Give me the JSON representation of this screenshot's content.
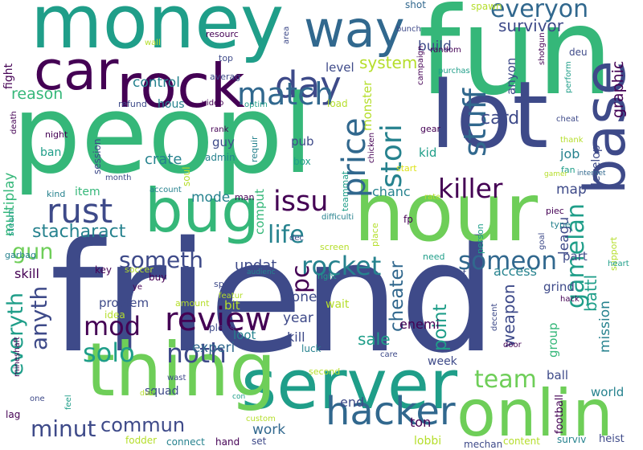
{
  "palette": {
    "dark_purple": "#440154",
    "indigo": "#3e4a89",
    "blue": "#31688e",
    "teal": "#26828e",
    "green_teal": "#1f9e89",
    "green": "#35b779",
    "light_green": "#6ece58",
    "lime": "#b5de2b",
    "yellow": "#dde318"
  },
  "words": [
    {
      "text": "friend",
      "color": "#3e4a89"
    },
    {
      "text": "peopl",
      "color": "#35b779"
    },
    {
      "text": "fun",
      "color": "#35b779"
    },
    {
      "text": "money",
      "color": "#1f9e89"
    },
    {
      "text": "server",
      "color": "#1f9e89"
    },
    {
      "text": "thing",
      "color": "#6ece58"
    },
    {
      "text": "lot",
      "color": "#3e4a89"
    },
    {
      "text": "hour",
      "color": "#6ece58"
    },
    {
      "text": "base",
      "color": "#3e4a89"
    },
    {
      "text": "onlin",
      "color": "#6ece58"
    },
    {
      "text": "bug",
      "color": "#35b779"
    },
    {
      "text": "car",
      "color": "#440154"
    },
    {
      "text": "rock",
      "color": "#440154"
    },
    {
      "text": "way",
      "color": "#31688e"
    },
    {
      "text": "day",
      "color": "#3e4a89"
    },
    {
      "text": "hacker",
      "color": "#31688e"
    },
    {
      "text": "everyon",
      "color": "#31688e"
    },
    {
      "text": "match",
      "color": "#31688e"
    },
    {
      "text": "stuff",
      "color": "#31688e"
    },
    {
      "text": "rust",
      "color": "#3e4a89"
    },
    {
      "text": "killer",
      "color": "#440154"
    },
    {
      "text": "stori",
      "color": "#26828e"
    },
    {
      "text": "price",
      "color": "#31688e"
    },
    {
      "text": "issu",
      "color": "#440154"
    },
    {
      "text": "gamelan",
      "color": "#1f9e89"
    },
    {
      "text": "review",
      "color": "#440154"
    },
    {
      "text": "someon",
      "color": "#31688e"
    },
    {
      "text": "rocket",
      "color": "#26828e"
    },
    {
      "text": "noth",
      "color": "#3e4a89"
    },
    {
      "text": "solo",
      "color": "#1f9e89"
    },
    {
      "text": "mod",
      "color": "#440154"
    },
    {
      "text": "team",
      "color": "#6ece58"
    },
    {
      "text": "commun",
      "color": "#3e4a89"
    },
    {
      "text": "gun",
      "color": "#6ece58"
    },
    {
      "text": "minut",
      "color": "#3e4a89"
    },
    {
      "text": "life",
      "color": "#26828e"
    },
    {
      "text": "pc",
      "color": "#440154"
    },
    {
      "text": "somet​h",
      "color": "#3e4a89"
    },
    {
      "text": "stacharact",
      "color": "#26828e"
    },
    {
      "text": "anyth",
      "color": "#3e4a89"
    },
    {
      "text": "everyth",
      "color": "#1f9e89"
    },
    {
      "text": "cheater",
      "color": "#31688e"
    },
    {
      "text": "point",
      "color": "#1f9e89"
    },
    {
      "text": "weapon",
      "color": "#3e4a89"
    },
    {
      "text": "graphic",
      "color": "#440154"
    },
    {
      "text": "heist",
      "color": "#3e4a89"
    },
    {
      "text": "card",
      "color": "#3e4a89"
    },
    {
      "text": "battl",
      "color": "#1f9e89"
    },
    {
      "text": "survivor",
      "color": "#3e4a89"
    },
    {
      "text": "system",
      "color": "#b5de2b"
    },
    {
      "text": "reason",
      "color": "#35b779"
    },
    {
      "text": "control",
      "color": "#26828e"
    },
    {
      "text": "crate",
      "color": "#26828e"
    },
    {
      "text": "build",
      "color": "#3e4a89"
    },
    {
      "text": "mode",
      "color": "#26828e"
    },
    {
      "text": "multiplay",
      "color": "#35b779"
    },
    {
      "text": "map",
      "color": "#3e4a89"
    },
    {
      "text": "updat",
      "color": "#3e4a89"
    },
    {
      "text": "sale",
      "color": "#1f9e89"
    },
    {
      "text": "year",
      "color": "#3e4a89"
    },
    {
      "text": "done",
      "color": "#3e4a89"
    },
    {
      "text": "experi",
      "color": "#31688e"
    },
    {
      "text": "leagu",
      "color": "#3e4a89"
    },
    {
      "text": "mission",
      "color": "#26828e"
    },
    {
      "text": "skill",
      "color": "#440154"
    },
    {
      "text": "problem",
      "color": "#3e4a89"
    },
    {
      "text": "enemi",
      "color": "#440154"
    },
    {
      "text": "kill",
      "color": "#3e4a89"
    },
    {
      "text": "access",
      "color": "#26828e"
    },
    {
      "text": "part",
      "color": "#3e4a89"
    },
    {
      "text": "grind",
      "color": "#3e4a89"
    },
    {
      "text": "world",
      "color": "#26828e"
    },
    {
      "text": "ton",
      "color": "#440154"
    },
    {
      "text": "end",
      "color": "#3e4a89"
    },
    {
      "text": "work",
      "color": "#31688e"
    },
    {
      "text": "lobbi",
      "color": "#b5de2b"
    },
    {
      "text": "ball",
      "color": "#3e4a89"
    },
    {
      "text": "group",
      "color": "#35b779"
    },
    {
      "text": "football",
      "color": "#440154"
    },
    {
      "text": "fight",
      "color": "#440154"
    },
    {
      "text": "level",
      "color": "#3e4a89"
    },
    {
      "text": "monster",
      "color": "#b5de2b"
    },
    {
      "text": "anyon",
      "color": "#3e4a89"
    },
    {
      "text": "job",
      "color": "#26828e"
    },
    {
      "text": "kid",
      "color": "#1f9e89"
    },
    {
      "text": "chanc",
      "color": "#26828e"
    },
    {
      "text": "guy",
      "color": "#3e4a89"
    },
    {
      "text": "pub",
      "color": "#3e4a89"
    },
    {
      "text": "item",
      "color": "#35b779"
    },
    {
      "text": "ban",
      "color": "#1f9e89"
    },
    {
      "text": "soul",
      "color": "#b5de2b"
    },
    {
      "text": "comput",
      "color": "#35b779"
    },
    {
      "text": "hous",
      "color": "#26828e"
    },
    {
      "text": "bit",
      "color": "#b5de2b"
    },
    {
      "text": "loot",
      "color": "#26828e"
    },
    {
      "text": "buy",
      "color": "#440154"
    },
    {
      "text": "squad",
      "color": "#3e4a89"
    },
    {
      "text": "week",
      "color": "#3e4a89"
    },
    {
      "text": "wait",
      "color": "#b5de2b"
    },
    {
      "text": "luck",
      "color": "#26828e"
    },
    {
      "text": "key",
      "color": "#440154"
    },
    {
      "text": "idea",
      "color": "#b5de2b"
    },
    {
      "text": "develop",
      "color": "#3e4a89"
    },
    {
      "text": "fp",
      "color": "#440154"
    },
    {
      "text": "shot",
      "color": "#31688e"
    },
    {
      "text": "spawn",
      "color": "#b5de2b"
    },
    {
      "text": "deu",
      "color": "#3e4a89"
    },
    {
      "text": "resourc",
      "color": "#440154"
    },
    {
      "text": "top",
      "color": "#3e4a89"
    },
    {
      "text": "averag",
      "color": "#3e4a89"
    },
    {
      "text": "session",
      "color": "#3e4a89"
    },
    {
      "text": "load",
      "color": "#b5de2b"
    },
    {
      "text": "fan",
      "color": "#1f9e89"
    },
    {
      "text": "cheat",
      "color": "#3e4a89"
    },
    {
      "text": "thank",
      "color": "#b5de2b"
    },
    {
      "text": "gear",
      "color": "#440154"
    },
    {
      "text": "start",
      "color": "#dde318"
    },
    {
      "text": "box",
      "color": "#1f9e89"
    },
    {
      "text": "admin",
      "color": "#26828e"
    },
    {
      "text": "rank",
      "color": "#440154"
    },
    {
      "text": "requir",
      "color": "#26828e"
    },
    {
      "text": "teammat",
      "color": "#1f9e89"
    },
    {
      "text": "piec",
      "color": "#440154"
    },
    {
      "text": "goal",
      "color": "#3e4a89"
    },
    {
      "text": "type",
      "color": "#26828e"
    },
    {
      "text": "support",
      "color": "#b5de2b"
    },
    {
      "text": "heart",
      "color": "#1f9e89"
    },
    {
      "text": "need",
      "color": "#1f9e89"
    },
    {
      "text": "moment",
      "color": "#3e4a89"
    },
    {
      "text": "screen",
      "color": "#b5de2b"
    },
    {
      "text": "place",
      "color": "#b5de2b"
    },
    {
      "text": "person",
      "color": "#1f9e89"
    },
    {
      "text": "difficulti",
      "color": "#26828e"
    },
    {
      "text": "rate",
      "color": "#b5de2b"
    },
    {
      "text": "soccer",
      "color": "#b5de2b"
    },
    {
      "text": "sport",
      "color": "#3e4a89"
    },
    {
      "text": "featur",
      "color": "#b5de2b"
    },
    {
      "text": "audienc",
      "color": "#26828e"
    },
    {
      "text": "right",
      "color": "#1f9e89"
    },
    {
      "text": "amount",
      "color": "#b5de2b"
    },
    {
      "text": "pleas",
      "color": "#3e4a89"
    },
    {
      "text": "dec",
      "color": "#3e4a89"
    },
    {
      "text": "man",
      "color": "#440154"
    },
    {
      "text": "account",
      "color": "#26828e"
    },
    {
      "text": "month",
      "color": "#3e4a89"
    },
    {
      "text": "kind",
      "color": "#26828e"
    },
    {
      "text": "steam",
      "color": "#1f9e89"
    },
    {
      "text": "garbag",
      "color": "#26828e"
    },
    {
      "text": "ye",
      "color": "#440154"
    },
    {
      "text": "night",
      "color": "#440154"
    },
    {
      "text": "death",
      "color": "#440154"
    },
    {
      "text": "refund",
      "color": "#3e4a89"
    },
    {
      "text": "video",
      "color": "#440154"
    },
    {
      "text": "optim",
      "color": "#1f9e89"
    },
    {
      "text": "wall",
      "color": "#b5de2b"
    },
    {
      "text": "area",
      "color": "#3e4a89"
    },
    {
      "text": "bunch",
      "color": "#3e4a89"
    },
    {
      "text": "random",
      "color": "#440154"
    },
    {
      "text": "campaign",
      "color": "#440154"
    },
    {
      "text": "purchas",
      "color": "#1f9e89"
    },
    {
      "text": "shotgun",
      "color": "#440154"
    },
    {
      "text": "perform",
      "color": "#1f9e89"
    },
    {
      "text": "chicken",
      "color": "#440154"
    },
    {
      "text": "gamer",
      "color": "#b5de2b"
    },
    {
      "text": "internet",
      "color": "#31688e"
    },
    {
      "text": "hack",
      "color": "#440154"
    },
    {
      "text": "decent",
      "color": "#3e4a89"
    },
    {
      "text": "door",
      "color": "#440154"
    },
    {
      "text": "care",
      "color": "#3e4a89"
    },
    {
      "text": "second",
      "color": "#b5de2b"
    },
    {
      "text": "wast",
      "color": "#3e4a89"
    },
    {
      "text": "duo",
      "color": "#b5de2b"
    },
    {
      "text": "con",
      "color": "#1f9e89"
    },
    {
      "text": "custom",
      "color": "#b5de2b"
    },
    {
      "text": "mineshaft",
      "color": "#440154"
    },
    {
      "text": "one",
      "color": "#3e4a89"
    },
    {
      "text": "feel",
      "color": "#1f9e89"
    },
    {
      "text": "lag",
      "color": "#440154"
    },
    {
      "text": "fodder",
      "color": "#b5de2b"
    },
    {
      "text": "connect",
      "color": "#26828e"
    },
    {
      "text": "hand",
      "color": "#440154"
    },
    {
      "text": "set",
      "color": "#3e4a89"
    },
    {
      "text": "mechan",
      "color": "#3e4a89"
    },
    {
      "text": "content",
      "color": "#b5de2b"
    },
    {
      "text": "surviv",
      "color": "#26828e"
    }
  ]
}
